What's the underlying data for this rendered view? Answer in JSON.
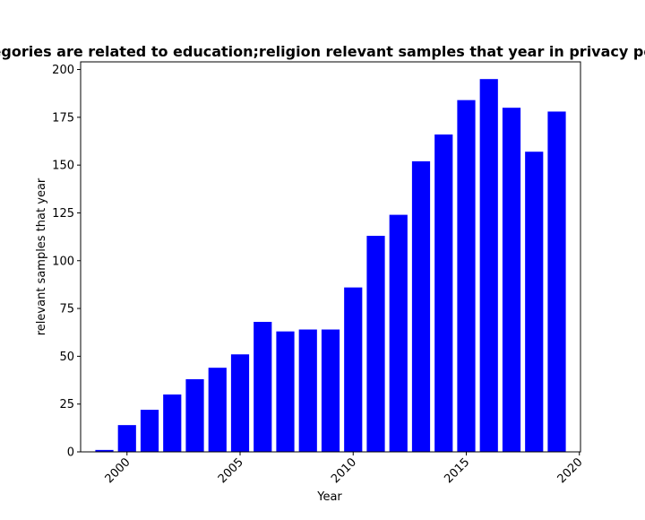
{
  "chart_data": {
    "type": "bar",
    "title": "Categories are related to education;religion relevant samples that year in privacy policies",
    "xlabel": "Year",
    "ylabel": "relevant samples that year",
    "x": [
      1999,
      2000,
      2001,
      2002,
      2003,
      2004,
      2005,
      2006,
      2007,
      2008,
      2009,
      2010,
      2011,
      2012,
      2013,
      2014,
      2015,
      2016,
      2017,
      2018,
      2019
    ],
    "values": [
      1,
      14,
      22,
      30,
      38,
      44,
      51,
      68,
      63,
      64,
      64,
      86,
      113,
      124,
      152,
      166,
      184,
      195,
      180,
      157,
      178
    ],
    "xlim": [
      1997.95,
      2020.05
    ],
    "ylim": [
      0,
      204
    ],
    "xticks": [
      2000,
      2005,
      2010,
      2015,
      2020
    ],
    "xtick_labels": [
      "2000",
      "2005",
      "2010",
      "2015",
      "2020"
    ],
    "yticks": [
      0,
      25,
      50,
      75,
      100,
      125,
      150,
      175,
      200
    ],
    "ytick_labels": [
      "0",
      "25",
      "50",
      "75",
      "100",
      "125",
      "150",
      "175",
      "200"
    ],
    "bar_color": "#0000ff",
    "grid": false,
    "legend": "none"
  }
}
